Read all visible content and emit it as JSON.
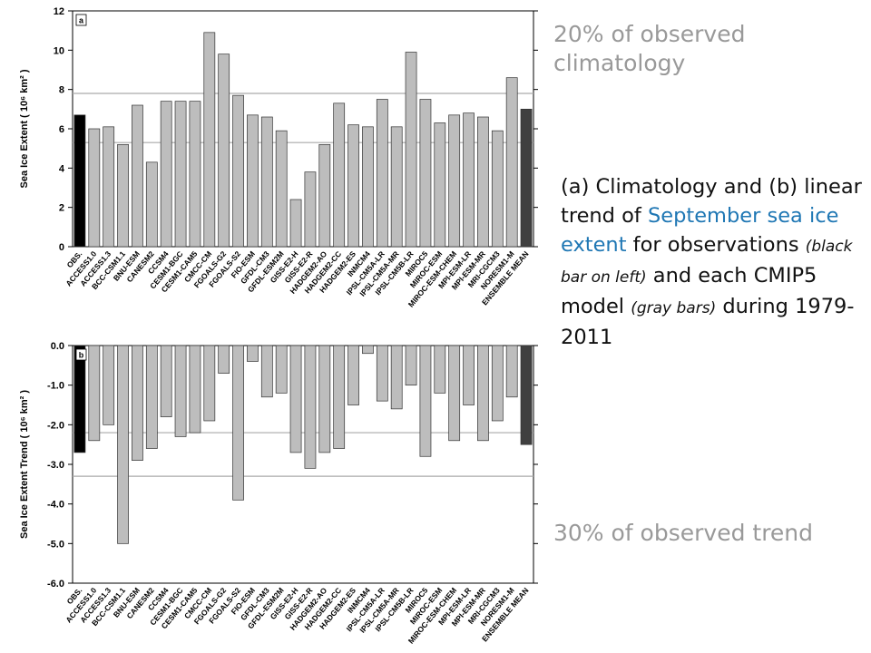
{
  "chart_data": [
    {
      "type": "bar",
      "panel_label": "a",
      "y_label": "Sea Ice Extent ( 10⁶ km² )",
      "categories": [
        "OBS.",
        "ACCESS1.0",
        "ACCESS1.3",
        "BCC-CSM1.1",
        "BNU-ESM",
        "CANESM2",
        "CCSM4",
        "CESM1-BGC",
        "CESM1-CAM5",
        "CMCC-CM",
        "FGOALS-G2",
        "FGOALS-S2",
        "FIO-ESM",
        "GFDL-CM3",
        "GFDL-ESM2M",
        "GISS-E2-H",
        "GISS-E2-R",
        "HADGEM2-AO",
        "HADGEM2-CC",
        "HADGEM2-ES",
        "INMCM4",
        "IPSL-CM5A-LR",
        "IPSL-CM5A-MR",
        "IPSL-CM5B-LR",
        "MIROC5",
        "MIROC-ESM",
        "MIROC-ESM-CHEM",
        "MPI-ESM-LR",
        "MPI-ESM-MR",
        "MRI-CGCM3",
        "NORESM1-M",
        "ENSEMBLE MEAN"
      ],
      "values": [
        6.7,
        6.0,
        6.1,
        5.2,
        7.2,
        4.3,
        7.4,
        7.4,
        7.4,
        10.9,
        9.8,
        7.7,
        6.7,
        6.6,
        5.9,
        2.4,
        3.8,
        5.2,
        7.3,
        6.2,
        6.1,
        7.5,
        6.1,
        9.9,
        7.5,
        6.3,
        6.7,
        6.8,
        6.6,
        5.9,
        8.6,
        7.0
      ],
      "colors": [
        "#000000",
        "#bdbdbd",
        "#bdbdbd",
        "#bdbdbd",
        "#bdbdbd",
        "#bdbdbd",
        "#bdbdbd",
        "#bdbdbd",
        "#bdbdbd",
        "#bdbdbd",
        "#bdbdbd",
        "#bdbdbd",
        "#bdbdbd",
        "#bdbdbd",
        "#bdbdbd",
        "#bdbdbd",
        "#bdbdbd",
        "#bdbdbd",
        "#bdbdbd",
        "#bdbdbd",
        "#bdbdbd",
        "#bdbdbd",
        "#bdbdbd",
        "#bdbdbd",
        "#bdbdbd",
        "#bdbdbd",
        "#bdbdbd",
        "#bdbdbd",
        "#bdbdbd",
        "#bdbdbd",
        "#bdbdbd",
        "#404040"
      ],
      "reference_lines": [
        7.8,
        5.3
      ],
      "ylim": [
        0,
        12
      ],
      "yticks": [
        0,
        2,
        4,
        6,
        8,
        10,
        12
      ]
    },
    {
      "type": "bar",
      "panel_label": "b",
      "y_label": "Sea Ice Extent Trend ( 10⁶ km² )",
      "categories": [
        "OBS.",
        "ACCESS1.0",
        "ACCESS1.3",
        "BCC-CSM1.1",
        "BNU-ESM",
        "CANESM2",
        "CCSM4",
        "CESM1-BGC",
        "CESM1-CAM5",
        "CMCC-CM",
        "FGOALS-G2",
        "FGOALS-S2",
        "FIO-ESM",
        "GFDL-CM3",
        "GFDL-ESM2M",
        "GISS-E2-H",
        "GISS-E2-R",
        "HADGEM2-AO",
        "HADGEM2-CC",
        "HADGEM2-ES",
        "INMCM4",
        "IPSL-CM5A-LR",
        "IPSL-CM5A-MR",
        "IPSL-CM5B-LR",
        "MIROC5",
        "MIROC-ESM",
        "MIROC-ESM-CHEM",
        "MPI-ESM-LR",
        "MPI-ESM-MR",
        "MRI-CGCM3",
        "NORESM1-M",
        "ENSEMBLE MEAN"
      ],
      "values": [
        -2.7,
        -2.4,
        -2.0,
        -5.0,
        -2.9,
        -2.6,
        -1.8,
        -2.3,
        -2.2,
        -1.9,
        -0.7,
        -3.9,
        -0.4,
        -1.3,
        -1.2,
        -2.7,
        -3.1,
        -2.7,
        -2.6,
        -1.5,
        -0.2,
        -1.4,
        -1.6,
        -1.0,
        -2.8,
        -1.2,
        -2.4,
        -1.5,
        -2.4,
        -1.9,
        -1.3,
        -2.5
      ],
      "colors": [
        "#000000",
        "#bdbdbd",
        "#bdbdbd",
        "#bdbdbd",
        "#bdbdbd",
        "#bdbdbd",
        "#bdbdbd",
        "#bdbdbd",
        "#bdbdbd",
        "#bdbdbd",
        "#bdbdbd",
        "#bdbdbd",
        "#bdbdbd",
        "#bdbdbd",
        "#bdbdbd",
        "#bdbdbd",
        "#bdbdbd",
        "#bdbdbd",
        "#bdbdbd",
        "#bdbdbd",
        "#bdbdbd",
        "#bdbdbd",
        "#bdbdbd",
        "#bdbdbd",
        "#bdbdbd",
        "#bdbdbd",
        "#bdbdbd",
        "#bdbdbd",
        "#bdbdbd",
        "#bdbdbd",
        "#bdbdbd",
        "#404040"
      ],
      "reference_lines": [
        -2.2,
        -3.3
      ],
      "ylim": [
        -6,
        0
      ],
      "yticks": [
        {
          "value": 0,
          "label": "0.0"
        },
        {
          "value": -1,
          "label": "-1.0"
        },
        {
          "value": -2,
          "label": "-2.0"
        },
        {
          "value": -3,
          "label": "-3.0"
        },
        {
          "value": -4,
          "label": "-4.0"
        },
        {
          "value": -5,
          "label": "-5.0"
        },
        {
          "value": -6,
          "label": "-6.0"
        }
      ]
    }
  ],
  "notes": {
    "top": "20% of observed climatology",
    "bottom": "30% of observed trend"
  },
  "caption": [
    "(a) Climatology and (b) linear trend of ",
    "September sea ice extent",
    " for observations ",
    "(black bar on left)",
    " and each CMIP5 model ",
    "(gray bars)",
    " during 1979-2011"
  ]
}
